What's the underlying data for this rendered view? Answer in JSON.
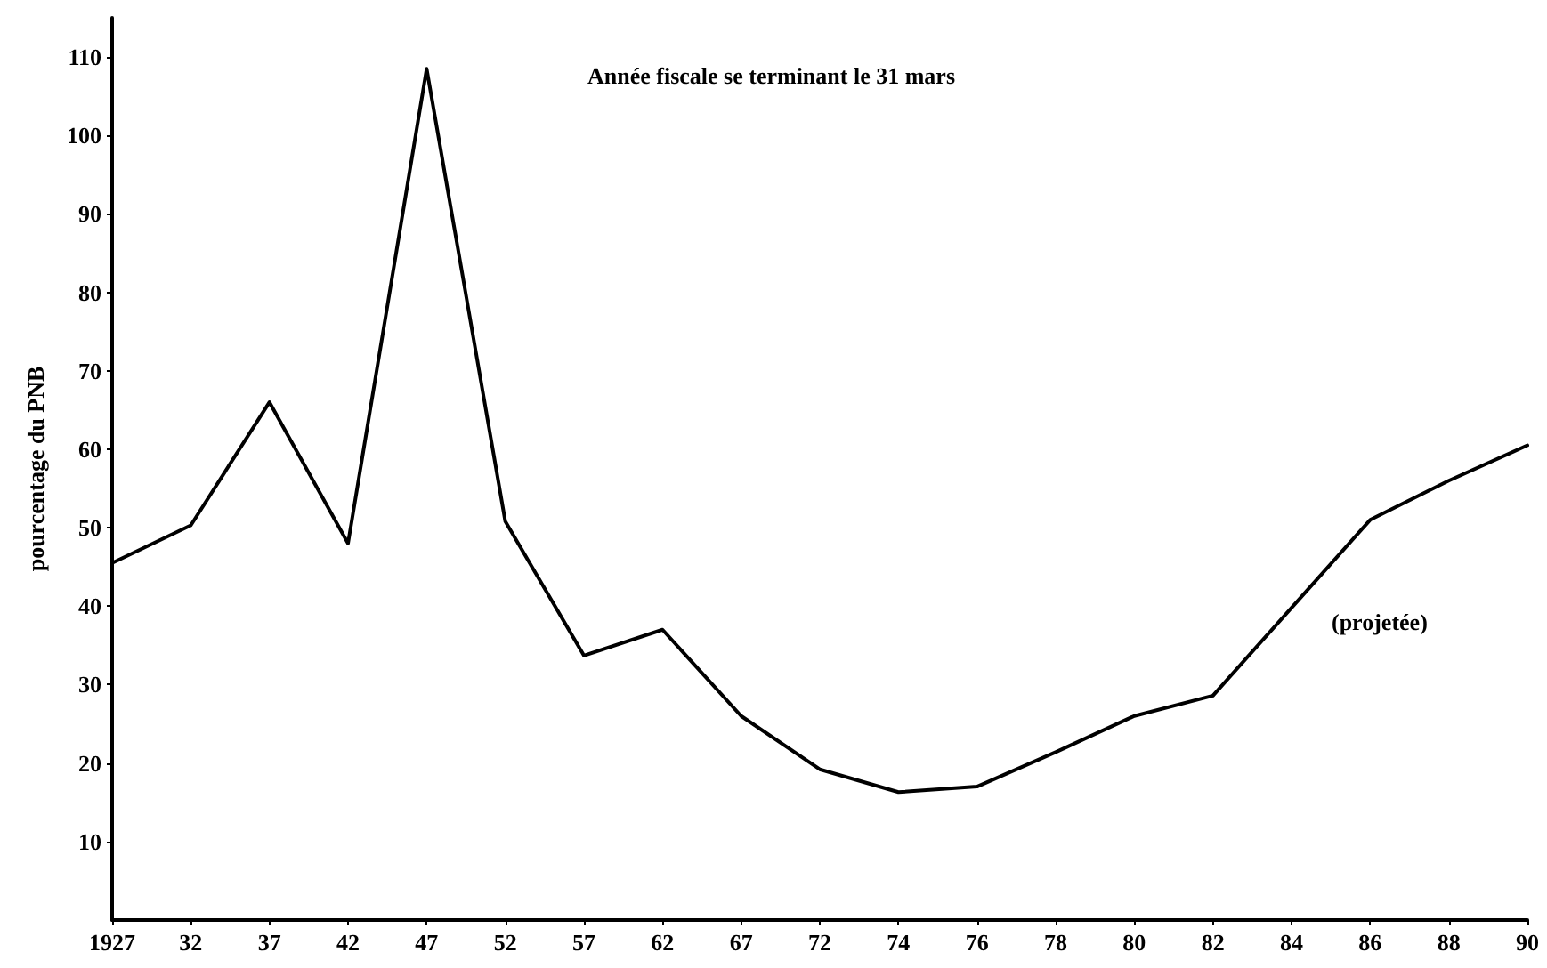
{
  "chart_data": {
    "type": "line",
    "ylabel": "pourcentage du PNB",
    "annotations": [
      "Année fiscale se terminant le 31 mars",
      "(projetée)"
    ],
    "categories": [
      "1927",
      "32",
      "37",
      "42",
      "47",
      "52",
      "57",
      "62",
      "67",
      "72",
      "74",
      "76",
      "78",
      "80",
      "82",
      "84",
      "86",
      "88",
      "90"
    ],
    "series": [
      {
        "color": "#000000",
        "values": [
          45.5,
          50.3,
          66,
          48,
          108.5,
          50.8,
          33.7,
          37,
          26,
          19.2,
          16.3,
          17,
          21.4,
          26,
          28.6,
          39.8,
          51,
          56,
          60.5
        ]
      }
    ],
    "ylim": [
      0,
      115
    ],
    "yticks": [
      10,
      20,
      30,
      40,
      50,
      60,
      70,
      80,
      90,
      100,
      110
    ],
    "grid": false,
    "marker": "none",
    "line_style": "solid"
  }
}
